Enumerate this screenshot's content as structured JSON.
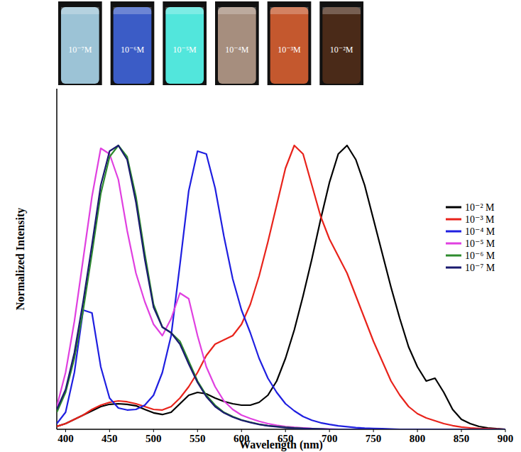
{
  "chart_data": {
    "type": "line",
    "x_label": "Wavelength (nm)",
    "y_label": "Normalized Intensity",
    "x": [
      390,
      400,
      410,
      420,
      430,
      440,
      450,
      460,
      470,
      480,
      490,
      500,
      510,
      520,
      530,
      540,
      550,
      560,
      570,
      580,
      590,
      600,
      610,
      620,
      630,
      640,
      650,
      660,
      670,
      680,
      690,
      700,
      710,
      720,
      730,
      740,
      750,
      760,
      770,
      780,
      790,
      800,
      810,
      820,
      830,
      840,
      850,
      860,
      870,
      880,
      890,
      900
    ],
    "xlim": [
      390,
      900
    ],
    "xticks": [
      400,
      450,
      500,
      550,
      600,
      650,
      700,
      750,
      800,
      850,
      900
    ],
    "ylim": [
      0,
      1.2
    ],
    "tick_labels": "x",
    "grid": false,
    "legend": "upper right",
    "vials": [
      {
        "label": "10⁻⁷M",
        "color": "#9cc3d6"
      },
      {
        "label": "10⁻⁶M",
        "color": "#3b5cc6"
      },
      {
        "label": "10⁻⁵M",
        "color": "#52e6dc"
      },
      {
        "label": "10⁻⁴M",
        "color": "#a68e7e"
      },
      {
        "label": "10⁻³M",
        "color": "#c4582e"
      },
      {
        "label": "10⁻²M",
        "color": "#4a2a18"
      }
    ],
    "series": [
      {
        "name": "10⁻² M",
        "color": "#000000",
        "values": [
          0.01,
          0.02,
          0.035,
          0.05,
          0.065,
          0.08,
          0.088,
          0.09,
          0.088,
          0.083,
          0.07,
          0.058,
          0.052,
          0.06,
          0.09,
          0.12,
          0.13,
          0.125,
          0.11,
          0.098,
          0.09,
          0.085,
          0.085,
          0.095,
          0.12,
          0.17,
          0.25,
          0.35,
          0.47,
          0.6,
          0.74,
          0.87,
          0.97,
          1.0,
          0.95,
          0.86,
          0.74,
          0.62,
          0.5,
          0.39,
          0.29,
          0.22,
          0.17,
          0.18,
          0.13,
          0.07,
          0.035,
          0.02,
          0.01,
          0.005,
          0.002,
          0
        ]
      },
      {
        "name": "10⁻³ M",
        "color": "#e8231b",
        "values": [
          0.01,
          0.02,
          0.035,
          0.05,
          0.07,
          0.085,
          0.095,
          0.1,
          0.097,
          0.09,
          0.08,
          0.07,
          0.068,
          0.08,
          0.11,
          0.15,
          0.2,
          0.26,
          0.3,
          0.315,
          0.33,
          0.37,
          0.44,
          0.54,
          0.66,
          0.79,
          0.92,
          1.0,
          0.97,
          0.86,
          0.75,
          0.67,
          0.61,
          0.55,
          0.47,
          0.39,
          0.31,
          0.24,
          0.17,
          0.12,
          0.08,
          0.055,
          0.04,
          0.03,
          0.02,
          0.013,
          0.008,
          0.005,
          0.003,
          0.002,
          0.001,
          0
        ]
      },
      {
        "name": "10⁻⁴ M",
        "color": "#1f1fe0",
        "values": [
          0.02,
          0.06,
          0.2,
          0.42,
          0.41,
          0.22,
          0.11,
          0.075,
          0.068,
          0.07,
          0.085,
          0.12,
          0.2,
          0.33,
          0.58,
          0.84,
          0.98,
          0.97,
          0.85,
          0.68,
          0.53,
          0.42,
          0.34,
          0.25,
          0.18,
          0.13,
          0.09,
          0.065,
          0.045,
          0.032,
          0.023,
          0.017,
          0.012,
          0.009,
          0.006,
          0.004,
          0.003,
          0.002,
          0.001,
          0,
          0,
          0,
          0,
          0,
          0,
          0,
          0,
          0,
          0,
          0,
          0,
          0
        ]
      },
      {
        "name": "10⁻⁵ M",
        "color": "#e040e0",
        "values": [
          0.08,
          0.2,
          0.38,
          0.6,
          0.82,
          0.99,
          0.97,
          0.88,
          0.7,
          0.55,
          0.45,
          0.37,
          0.33,
          0.39,
          0.48,
          0.46,
          0.33,
          0.22,
          0.15,
          0.1,
          0.07,
          0.05,
          0.038,
          0.028,
          0.02,
          0.014,
          0.01,
          0.007,
          0.005,
          0.003,
          0.002,
          0.001,
          0,
          0,
          0,
          0,
          0,
          0,
          0,
          0,
          0,
          0,
          0,
          0,
          0,
          0,
          0,
          0,
          0,
          0,
          0,
          0
        ]
      },
      {
        "name": "10⁻⁶ M",
        "color": "#2e8b2e",
        "values": [
          0.06,
          0.13,
          0.25,
          0.42,
          0.62,
          0.83,
          0.96,
          1.0,
          0.96,
          0.82,
          0.62,
          0.44,
          0.36,
          0.34,
          0.31,
          0.24,
          0.17,
          0.12,
          0.085,
          0.06,
          0.045,
          0.033,
          0.025,
          0.018,
          0.013,
          0.01,
          0.007,
          0.005,
          0.003,
          0.002,
          0.001,
          0,
          0,
          0,
          0,
          0,
          0,
          0,
          0,
          0,
          0,
          0,
          0,
          0,
          0,
          0,
          0,
          0,
          0,
          0,
          0,
          0
        ]
      },
      {
        "name": "10⁻⁷ M",
        "color": "#1a1a6e",
        "values": [
          0.07,
          0.14,
          0.27,
          0.45,
          0.65,
          0.86,
          0.98,
          1.0,
          0.95,
          0.8,
          0.6,
          0.43,
          0.36,
          0.34,
          0.3,
          0.23,
          0.165,
          0.115,
          0.08,
          0.058,
          0.043,
          0.032,
          0.024,
          0.017,
          0.012,
          0.009,
          0.006,
          0.004,
          0.003,
          0.002,
          0.001,
          0,
          0,
          0,
          0,
          0,
          0,
          0,
          0,
          0,
          0,
          0,
          0,
          0,
          0,
          0,
          0,
          0,
          0,
          0,
          0,
          0
        ]
      }
    ]
  }
}
